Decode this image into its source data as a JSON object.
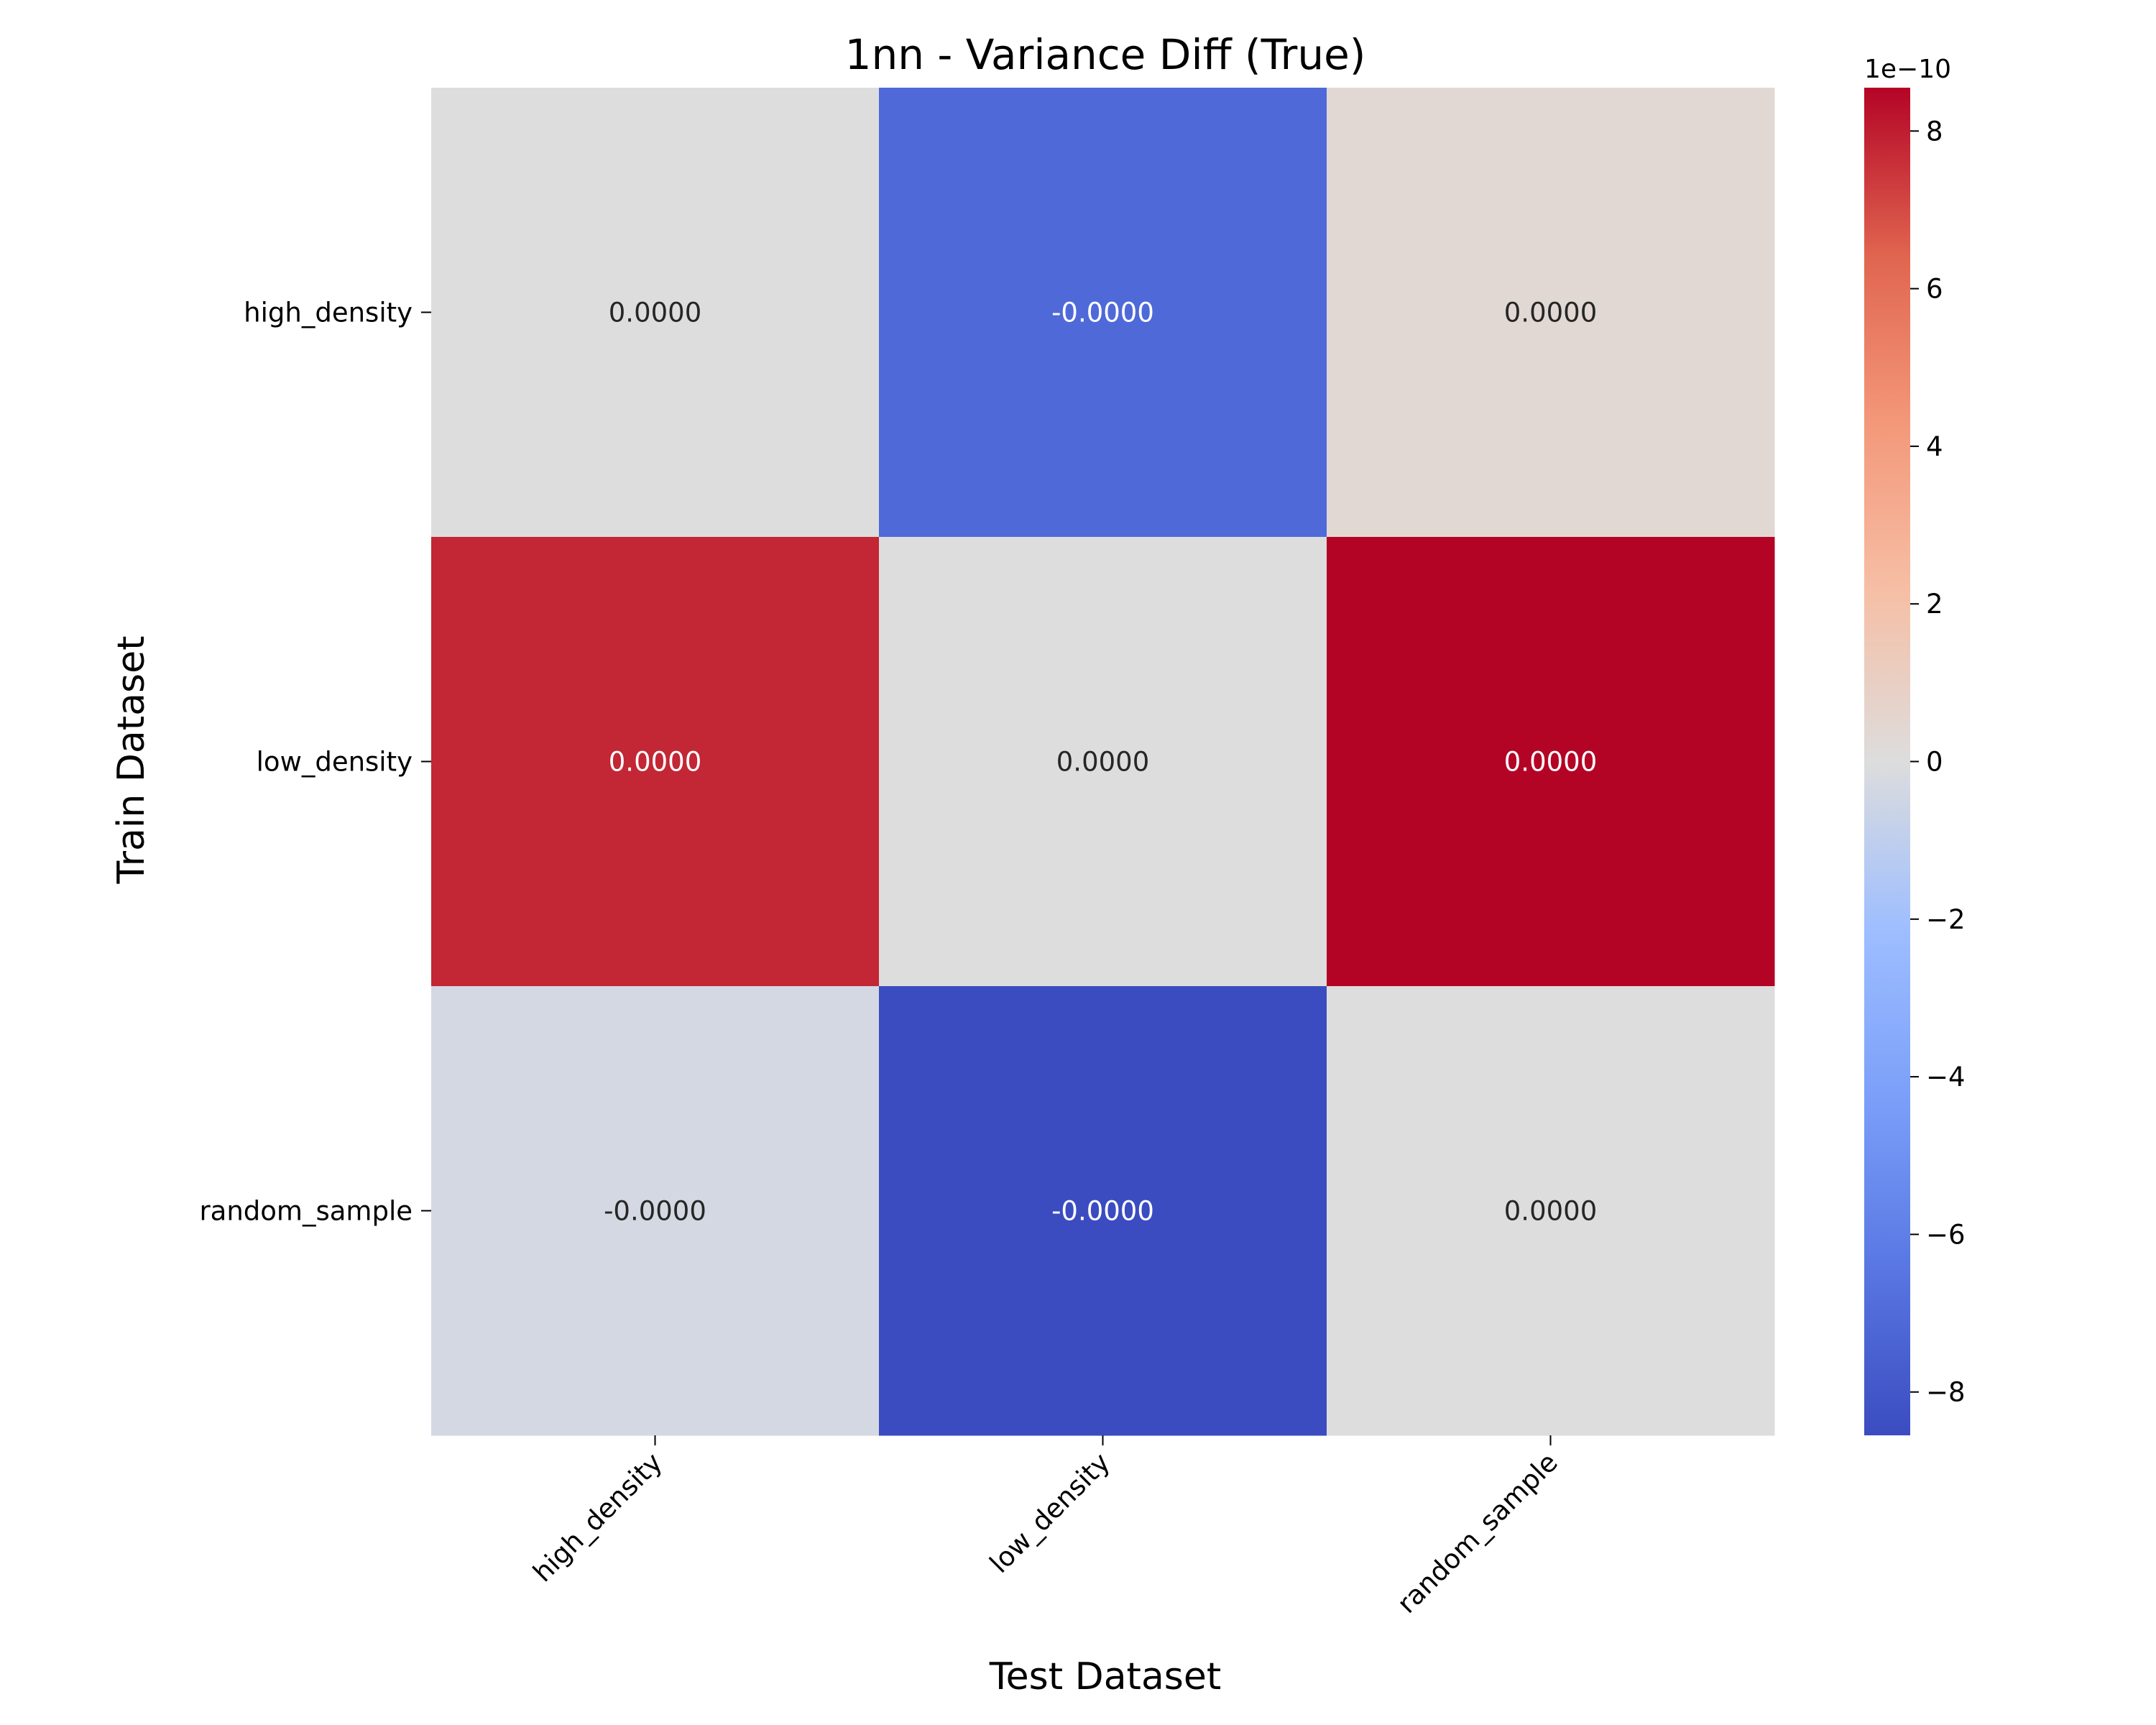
{
  "chart_data": {
    "type": "heatmap",
    "title": "1nn - Variance Diff (True)",
    "xlabel": "Test Dataset",
    "ylabel": "Train Dataset",
    "x_categories": [
      "high_density",
      "low_density",
      "random_sample"
    ],
    "y_categories": [
      "high_density",
      "low_density",
      "random_sample"
    ],
    "values": [
      [
        0.0,
        -7.1e-10,
        3.5e-11
      ],
      [
        7.8e-10,
        0.0,
        8.55e-10
      ],
      [
        -3.5e-11,
        -8.55e-10,
        0.0
      ]
    ],
    "cell_labels": [
      [
        "0.0000",
        "-0.0000",
        "0.0000"
      ],
      [
        "0.0000",
        "0.0000",
        "0.0000"
      ],
      [
        "-0.0000",
        "-0.0000",
        "0.0000"
      ]
    ],
    "colormap": "coolwarm",
    "colorbar": {
      "range": [
        -8.55e-10,
        8.55e-10
      ],
      "ticks": [
        8,
        6,
        4,
        2,
        0,
        -2,
        -4,
        -6,
        -8
      ],
      "tick_labels": [
        "8",
        "6",
        "4",
        "2",
        "0",
        "−2",
        "−4",
        "−6",
        "−8"
      ],
      "scale_factor": 1e-10,
      "offset_label": "1e−10"
    }
  }
}
